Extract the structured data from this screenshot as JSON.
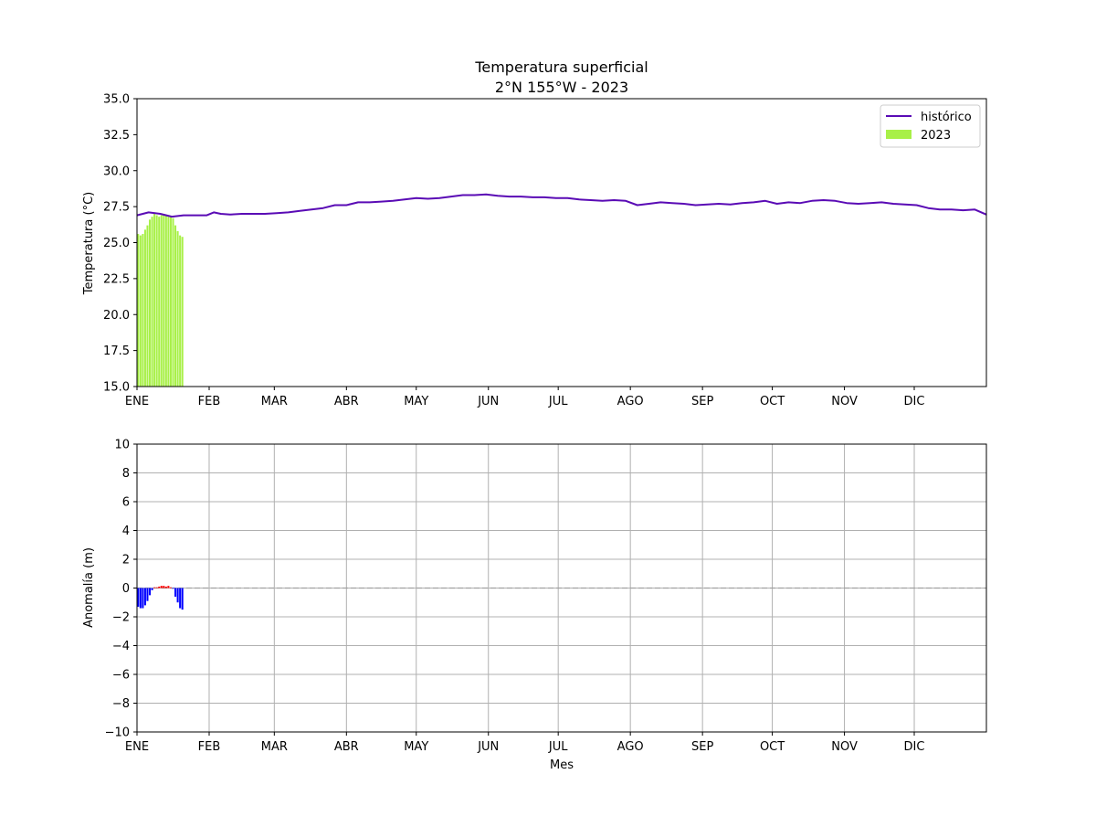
{
  "figure": {
    "title_line1": "Temperatura superficial",
    "title_line2": "2°N 155°W - 2023"
  },
  "colors": {
    "historic_line": "#5a0bb5",
    "year_bars": "#a8f048",
    "anomaly_positive": "#ff0000",
    "anomaly_negative": "#0000ff",
    "zero_line": "#a0a0a0",
    "grid": "#b0b0b0"
  },
  "chart_data": [
    {
      "type": "line",
      "ylabel": "Temperatura (°C)",
      "xlabel": "",
      "ylim": [
        15,
        35
      ],
      "xlim_days": [
        0,
        365
      ],
      "yticks": [
        "15.0",
        "17.5",
        "20.0",
        "22.5",
        "25.0",
        "27.5",
        "30.0",
        "32.5",
        "35.0"
      ],
      "ytick_values": [
        15,
        17.5,
        20,
        22.5,
        25,
        27.5,
        30,
        32.5,
        35
      ],
      "xticks": [
        "ENE",
        "FEB",
        "MAR",
        "ABR",
        "MAY",
        "JUN",
        "JUL",
        "AGO",
        "SEP",
        "OCT",
        "NOV",
        "DIC"
      ],
      "xtick_days": [
        0,
        31,
        59,
        90,
        120,
        151,
        181,
        212,
        243,
        273,
        304,
        334
      ],
      "grid": false,
      "legend_placement": "top-right",
      "series": [
        {
          "name": "histórico",
          "kind": "line",
          "x_days": [
            0,
            5,
            10,
            15,
            20,
            25,
            30,
            33,
            36,
            40,
            45,
            50,
            55,
            60,
            65,
            70,
            75,
            80,
            85,
            90,
            95,
            100,
            105,
            110,
            115,
            120,
            125,
            130,
            135,
            140,
            145,
            150,
            155,
            160,
            165,
            170,
            175,
            180,
            185,
            190,
            195,
            200,
            205,
            210,
            215,
            220,
            225,
            230,
            235,
            240,
            245,
            250,
            255,
            260,
            265,
            270,
            275,
            280,
            285,
            290,
            295,
            300,
            305,
            310,
            315,
            320,
            325,
            330,
            335,
            340,
            345,
            350,
            355,
            360,
            365
          ],
          "values": [
            26.9,
            27.1,
            27.0,
            26.8,
            26.9,
            26.9,
            26.9,
            27.1,
            27.0,
            26.95,
            27.0,
            27.0,
            27.0,
            27.05,
            27.1,
            27.2,
            27.3,
            27.4,
            27.6,
            27.6,
            27.8,
            27.8,
            27.85,
            27.9,
            28.0,
            28.1,
            28.05,
            28.1,
            28.2,
            28.3,
            28.3,
            28.35,
            28.25,
            28.2,
            28.2,
            28.15,
            28.15,
            28.1,
            28.1,
            28.0,
            27.95,
            27.9,
            27.95,
            27.9,
            27.6,
            27.7,
            27.8,
            27.75,
            27.7,
            27.6,
            27.65,
            27.7,
            27.65,
            27.75,
            27.8,
            27.9,
            27.7,
            27.8,
            27.75,
            27.9,
            27.95,
            27.9,
            27.75,
            27.7,
            27.75,
            27.8,
            27.7,
            27.65,
            27.6,
            27.4,
            27.3,
            27.3,
            27.25,
            27.3,
            26.95
          ]
        },
        {
          "name": "2023",
          "kind": "bar",
          "x_days": [
            1,
            2,
            3,
            4,
            5,
            6,
            7,
            8,
            9,
            10,
            11,
            12,
            13,
            14,
            15,
            16,
            17,
            18,
            19,
            20
          ],
          "values": [
            25.6,
            25.5,
            25.6,
            25.9,
            26.2,
            26.6,
            26.8,
            27.0,
            26.9,
            26.8,
            26.9,
            27.0,
            26.9,
            26.8,
            26.8,
            26.7,
            26.2,
            25.8,
            25.5,
            25.4
          ]
        }
      ]
    },
    {
      "type": "bar",
      "ylabel": "Anomalía (m)",
      "xlabel": "Mes",
      "ylim": [
        -10,
        10
      ],
      "xlim_days": [
        0,
        365
      ],
      "yticks": [
        "10",
        "8",
        "6",
        "4",
        "2",
        "0",
        "−2",
        "−4",
        "−6",
        "−8",
        "−10"
      ],
      "ytick_values": [
        10,
        8,
        6,
        4,
        2,
        0,
        -2,
        -4,
        -6,
        -8,
        -10
      ],
      "xticks": [
        "ENE",
        "FEB",
        "MAR",
        "ABR",
        "MAY",
        "JUN",
        "JUL",
        "AGO",
        "SEP",
        "OCT",
        "NOV",
        "DIC"
      ],
      "xtick_days": [
        0,
        31,
        59,
        90,
        120,
        151,
        181,
        212,
        243,
        273,
        304,
        334
      ],
      "grid": true,
      "zero_line": "dashed",
      "series": [
        {
          "kind": "bar",
          "x_days": [
            1,
            2,
            3,
            4,
            5,
            6,
            7,
            8,
            9,
            10,
            11,
            12,
            13,
            14,
            15,
            16,
            17,
            18,
            19,
            20
          ],
          "values": [
            -1.3,
            -1.4,
            -1.4,
            -1.2,
            -0.9,
            -0.5,
            -0.15,
            0.05,
            0.05,
            0.1,
            0.15,
            0.15,
            0.1,
            0.15,
            0.05,
            -0.05,
            -0.6,
            -1.0,
            -1.4,
            -1.5
          ]
        }
      ]
    }
  ]
}
